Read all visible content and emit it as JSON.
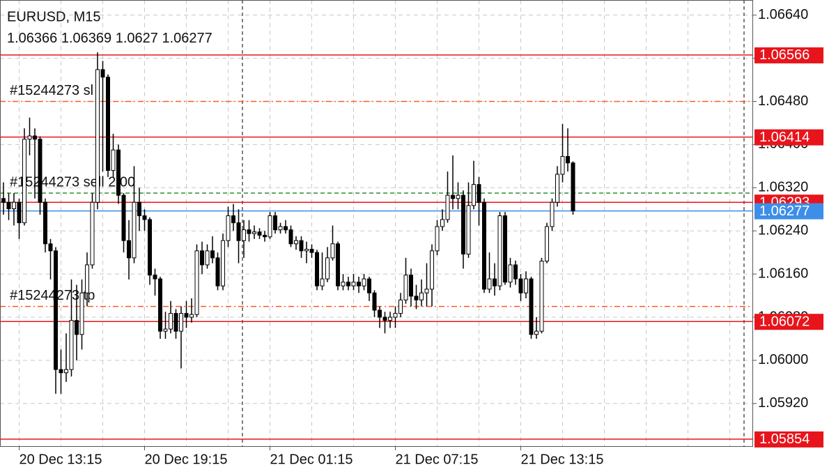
{
  "chart_data": {
    "type": "candlestick",
    "title": "EURUSD, M15",
    "ylim": [
      1.05841,
      1.06668
    ],
    "yticks": [
      {
        "value": 1.0592,
        "label": "1.05920"
      },
      {
        "value": 1.06,
        "label": "1.06000"
      },
      {
        "value": 1.0608,
        "label": "1.06080"
      },
      {
        "value": 1.0616,
        "label": "1.06160"
      },
      {
        "value": 1.0624,
        "label": "1.06240"
      },
      {
        "value": 1.0632,
        "label": "1.06320"
      },
      {
        "value": 1.064,
        "label": "1.06400"
      },
      {
        "value": 1.0648,
        "label": "1.06480"
      },
      {
        "value": 1.0656,
        "label": "1.06560"
      },
      {
        "value": 1.0664,
        "label": "1.06640"
      }
    ],
    "xticks": [
      {
        "value": 3,
        "label": "20 Dec 13:15"
      },
      {
        "value": 27,
        "label": "20 Dec 19:15"
      },
      {
        "value": 51,
        "label": "21 Dec 01:15"
      },
      {
        "value": 75,
        "label": "21 Dec 07:15"
      },
      {
        "value": 99,
        "label": "21 Dec 13:15"
      }
    ],
    "grid": true,
    "up_color": "#ffffff",
    "down_color": "#000000",
    "levels": [
      {
        "value": 1.06566,
        "color": "#e8141c"
      },
      {
        "value": 1.06414,
        "color": "#e8141c"
      },
      {
        "value": 1.06293,
        "color": "#e8141c"
      },
      {
        "value": 1.06277,
        "color": "#3d8ee8"
      },
      {
        "value": 1.06072,
        "color": "#e8141c"
      },
      {
        "value": 1.05854,
        "color": "#e8141c"
      }
    ],
    "orders": [
      {
        "label": "#15244273 sl",
        "value": 1.0648,
        "color": "#ff5a1e",
        "style": "dashdot"
      },
      {
        "label": "#15244273 sell 2.00",
        "value": 1.0631,
        "color": "#2e8b2e",
        "style": "dashed"
      },
      {
        "label": "#15244273 tp",
        "value": 1.061,
        "color": "#ff5a1e",
        "style": "dashdot"
      }
    ],
    "ohlc": [
      [
        1.063,
        1.0633,
        1.0627,
        1.06293
      ],
      [
        1.06293,
        1.0631,
        1.0626,
        1.06281
      ],
      [
        1.06281,
        1.0631,
        1.0625,
        1.06293
      ],
      [
        1.06293,
        1.063,
        1.06225,
        1.06255
      ],
      [
        1.06255,
        1.0643,
        1.0625,
        1.0641
      ],
      [
        1.0641,
        1.0645,
        1.0638,
        1.06416
      ],
      [
        1.06416,
        1.0643,
        1.063,
        1.0641
      ],
      [
        1.0641,
        1.06415,
        1.0627,
        1.06293
      ],
      [
        1.06293,
        1.063,
        1.062,
        1.06216
      ],
      [
        1.06216,
        1.06225,
        1.0615,
        1.06203
      ],
      [
        1.06203,
        1.0621,
        1.05938,
        1.05983
      ],
      [
        1.05983,
        1.0602,
        1.05938,
        1.05977
      ],
      [
        1.05977,
        1.0605,
        1.0596,
        1.05983
      ],
      [
        1.05983,
        1.0615,
        1.0597,
        1.06074
      ],
      [
        1.06074,
        1.0614,
        1.06,
        1.06048
      ],
      [
        1.06048,
        1.0615,
        1.0602,
        1.06125
      ],
      [
        1.06125,
        1.062,
        1.061,
        1.06177
      ],
      [
        1.06177,
        1.0631,
        1.0617,
        1.06293
      ],
      [
        1.06293,
        1.06571,
        1.0628,
        1.06539
      ],
      [
        1.06539,
        1.06555,
        1.0635,
        1.06525
      ],
      [
        1.06525,
        1.0653,
        1.0634,
        1.06352
      ],
      [
        1.06352,
        1.0642,
        1.0634,
        1.0639
      ],
      [
        1.0639,
        1.064,
        1.0629,
        1.06306
      ],
      [
        1.06306,
        1.0631,
        1.062,
        1.06222
      ],
      [
        1.06222,
        1.0626,
        1.0615,
        1.0619
      ],
      [
        1.0619,
        1.0636,
        1.0618,
        1.06293
      ],
      [
        1.06293,
        1.0632,
        1.0624,
        1.06268
      ],
      [
        1.06268,
        1.0628,
        1.0624,
        1.06261
      ],
      [
        1.06261,
        1.06265,
        1.0614,
        1.06158
      ],
      [
        1.06158,
        1.0617,
        1.0612,
        1.06151
      ],
      [
        1.06151,
        1.06155,
        1.0604,
        1.06054
      ],
      [
        1.06054,
        1.0609,
        1.0604,
        1.06058
      ],
      [
        1.06058,
        1.0611,
        1.0605,
        1.06087
      ],
      [
        1.06087,
        1.06095,
        1.0604,
        1.06054
      ],
      [
        1.06054,
        1.061,
        1.05985,
        1.06087
      ],
      [
        1.06087,
        1.0611,
        1.0606,
        1.0608
      ],
      [
        1.0608,
        1.06115,
        1.0607,
        1.06085
      ],
      [
        1.06085,
        1.06215,
        1.0608,
        1.06203
      ],
      [
        1.06203,
        1.0622,
        1.0616,
        1.06177
      ],
      [
        1.06177,
        1.06215,
        1.0617,
        1.06203
      ],
      [
        1.06203,
        1.0623,
        1.0618,
        1.0619
      ],
      [
        1.0619,
        1.062,
        1.0613,
        1.06138
      ],
      [
        1.06138,
        1.06235,
        1.0613,
        1.06222
      ],
      [
        1.06222,
        1.06285,
        1.0621,
        1.06268
      ],
      [
        1.06268,
        1.0629,
        1.0624,
        1.06255
      ],
      [
        1.06255,
        1.0628,
        1.0618,
        1.06222
      ],
      [
        1.06222,
        1.0626,
        1.0619,
        1.06242
      ],
      [
        1.06242,
        1.0626,
        1.0622,
        1.06235
      ],
      [
        1.06235,
        1.0625,
        1.06225,
        1.06238
      ],
      [
        1.06238,
        1.06245,
        1.06225,
        1.06232
      ],
      [
        1.06232,
        1.0624,
        1.0622,
        1.06229
      ],
      [
        1.06229,
        1.06275,
        1.06225,
        1.06268
      ],
      [
        1.06268,
        1.06275,
        1.06235,
        1.06242
      ],
      [
        1.06242,
        1.06255,
        1.06235,
        1.06248
      ],
      [
        1.06248,
        1.0626,
        1.06235,
        1.06242
      ],
      [
        1.06242,
        1.0625,
        1.0621,
        1.06216
      ],
      [
        1.06216,
        1.0623,
        1.06205,
        1.06222
      ],
      [
        1.06222,
        1.0623,
        1.0619,
        1.06203
      ],
      [
        1.06203,
        1.0622,
        1.0618,
        1.06206
      ],
      [
        1.06206,
        1.06215,
        1.0619,
        1.062
      ],
      [
        1.062,
        1.06205,
        1.0613,
        1.06138
      ],
      [
        1.06138,
        1.062,
        1.0613,
        1.06151
      ],
      [
        1.06151,
        1.0621,
        1.06145,
        1.0619
      ],
      [
        1.0619,
        1.0625,
        1.06185,
        1.06216
      ],
      [
        1.06216,
        1.0622,
        1.0613,
        1.06138
      ],
      [
        1.06138,
        1.0616,
        1.0613,
        1.06145
      ],
      [
        1.06145,
        1.06155,
        1.0613,
        1.06138
      ],
      [
        1.06138,
        1.0616,
        1.0613,
        1.06145
      ],
      [
        1.06145,
        1.06155,
        1.06125,
        1.06138
      ],
      [
        1.06138,
        1.0616,
        1.0613,
        1.06151
      ],
      [
        1.06151,
        1.06155,
        1.0611,
        1.06125
      ],
      [
        1.06125,
        1.0613,
        1.0608,
        1.06093
      ],
      [
        1.06093,
        1.061,
        1.0606,
        1.0608
      ],
      [
        1.0608,
        1.0609,
        1.0605,
        1.06074
      ],
      [
        1.06074,
        1.0609,
        1.0606,
        1.0608
      ],
      [
        1.0608,
        1.061,
        1.0606,
        1.06087
      ],
      [
        1.06087,
        1.06125,
        1.0608,
        1.06112
      ],
      [
        1.06112,
        1.0619,
        1.06105,
        1.06158
      ],
      [
        1.06158,
        1.0617,
        1.061,
        1.06119
      ],
      [
        1.06119,
        1.0614,
        1.06095,
        1.06112
      ],
      [
        1.06112,
        1.0615,
        1.061,
        1.06125
      ],
      [
        1.06125,
        1.0618,
        1.061,
        1.06132
      ],
      [
        1.06132,
        1.06215,
        1.061,
        1.06203
      ],
      [
        1.06203,
        1.0626,
        1.06195,
        1.06248
      ],
      [
        1.06248,
        1.0628,
        1.0624,
        1.06261
      ],
      [
        1.06261,
        1.0635,
        1.06255,
        1.06306
      ],
      [
        1.06306,
        1.0638,
        1.0628,
        1.063
      ],
      [
        1.063,
        1.0633,
        1.0628,
        1.06306
      ],
      [
        1.06306,
        1.06315,
        1.0617,
        1.06197
      ],
      [
        1.06197,
        1.0633,
        1.0619,
        1.06287
      ],
      [
        1.06287,
        1.0637,
        1.0628,
        1.06326
      ],
      [
        1.06326,
        1.0634,
        1.0625,
        1.06293
      ],
      [
        1.06293,
        1.063,
        1.06125,
        1.06132
      ],
      [
        1.06132,
        1.062,
        1.06125,
        1.06151
      ],
      [
        1.06151,
        1.0618,
        1.0612,
        1.06138
      ],
      [
        1.06138,
        1.06275,
        1.0613,
        1.06268
      ],
      [
        1.06268,
        1.06275,
        1.0614,
        1.06145
      ],
      [
        1.06145,
        1.0619,
        1.06135,
        1.06177
      ],
      [
        1.06177,
        1.06185,
        1.0614,
        1.06151
      ],
      [
        1.06151,
        1.0616,
        1.0611,
        1.06125
      ],
      [
        1.06125,
        1.06165,
        1.06115,
        1.06151
      ],
      [
        1.06151,
        1.06155,
        1.0604,
        1.06048
      ],
      [
        1.06048,
        1.0608,
        1.0604,
        1.06054
      ],
      [
        1.06054,
        1.0619,
        1.0605,
        1.06184
      ],
      [
        1.06184,
        1.06255,
        1.0618,
        1.06248
      ],
      [
        1.06248,
        1.063,
        1.0624,
        1.06293
      ],
      [
        1.06293,
        1.0636,
        1.06285,
        1.06345
      ],
      [
        1.06345,
        1.06438,
        1.0633,
        1.06378
      ],
      [
        1.06378,
        1.0643,
        1.0635,
        1.06366
      ],
      [
        1.06366,
        1.06369,
        1.0627,
        1.06277
      ]
    ]
  }
}
